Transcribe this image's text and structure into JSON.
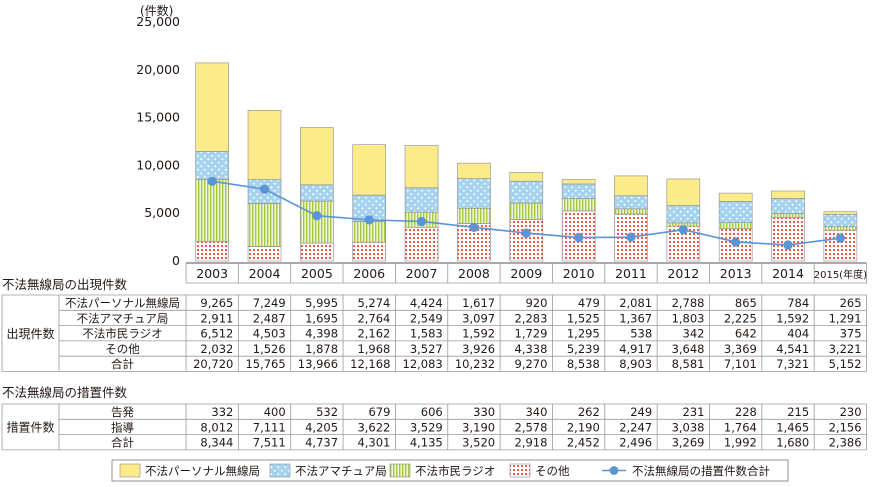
{
  "chart_data": {
    "type": "bar",
    "stacked": true,
    "y_unit_label": "(件数)",
    "ylim": [
      0,
      25000
    ],
    "y_ticks": [
      "0",
      "5,000",
      "10,000",
      "15,000",
      "20,000",
      "25,000"
    ],
    "y_tick_values": [
      0,
      5000,
      10000,
      15000,
      20000,
      25000
    ],
    "categories": [
      "2003",
      "2004",
      "2005",
      "2006",
      "2007",
      "2008",
      "2009",
      "2010",
      "2011",
      "2012",
      "2013",
      "2014",
      "2015(年度)"
    ],
    "series": [
      {
        "name": "その他",
        "color": "#e8483e",
        "values": [
          2032,
          1526,
          1878,
          1968,
          3527,
          3926,
          4338,
          5239,
          4917,
          3648,
          3369,
          4541,
          3221
        ]
      },
      {
        "name": "不法市民ラジオ",
        "color": "#a6c83c",
        "values": [
          6512,
          4503,
          4398,
          2162,
          1583,
          1592,
          1729,
          1295,
          538,
          342,
          642,
          404,
          375
        ]
      },
      {
        "name": "不法アマチュア局",
        "color": "#a5d3ef",
        "values": [
          2911,
          2487,
          1695,
          2764,
          2549,
          3097,
          2283,
          1525,
          1367,
          1803,
          2225,
          1592,
          1291
        ]
      },
      {
        "name": "不法パーソナル無線局",
        "color": "#fbeb8a",
        "values": [
          9265,
          7249,
          5995,
          5274,
          4424,
          1617,
          920,
          479,
          2081,
          2788,
          865,
          784,
          265
        ]
      }
    ],
    "line_series": {
      "name": "不法無線局の措置件数合計",
      "color": "#5b95d4",
      "values": [
        8344,
        7511,
        4737,
        4301,
        4135,
        3520,
        2918,
        2452,
        2496,
        3269,
        1992,
        1680,
        2386
      ]
    },
    "legend": {
      "position": "bottom",
      "items": [
        "不法パーソナル無線局",
        "不法アマチュア局",
        "不法市民ラジオ",
        "その他",
        "不法無線局の措置件数合計"
      ]
    },
    "tables": [
      {
        "caption": "不法無線局の出現件数",
        "group_label": "出現件数",
        "rows": [
          {
            "label": "不法パーソナル無線局",
            "values": [
              "9,265",
              "7,249",
              "5,995",
              "5,274",
              "4,424",
              "1,617",
              "920",
              "479",
              "2,081",
              "2,788",
              "865",
              "784",
              "265"
            ]
          },
          {
            "label": "不法アマチュア局",
            "values": [
              "2,911",
              "2,487",
              "1,695",
              "2,764",
              "2,549",
              "3,097",
              "2,283",
              "1,525",
              "1,367",
              "1,803",
              "2,225",
              "1,592",
              "1,291"
            ]
          },
          {
            "label": "不法市民ラジオ",
            "values": [
              "6,512",
              "4,503",
              "4,398",
              "2,162",
              "1,583",
              "1,592",
              "1,729",
              "1,295",
              "538",
              "342",
              "642",
              "404",
              "375"
            ]
          },
          {
            "label": "その他",
            "values": [
              "2,032",
              "1,526",
              "1,878",
              "1,968",
              "3,527",
              "3,926",
              "4,338",
              "5,239",
              "4,917",
              "3,648",
              "3,369",
              "4,541",
              "3,221"
            ]
          },
          {
            "label": "合計",
            "values": [
              "20,720",
              "15,765",
              "13,966",
              "12,168",
              "12,083",
              "10,232",
              "9,270",
              "8,538",
              "8,903",
              "8,581",
              "7,101",
              "7,321",
              "5,152"
            ]
          }
        ]
      },
      {
        "caption": "不法無線局の措置件数",
        "group_label": "措置件数",
        "rows": [
          {
            "label": "告発",
            "values": [
              "332",
              "400",
              "532",
              "679",
              "606",
              "330",
              "340",
              "262",
              "249",
              "231",
              "228",
              "215",
              "230"
            ]
          },
          {
            "label": "指導",
            "values": [
              "8,012",
              "7,111",
              "4,205",
              "3,622",
              "3,529",
              "3,190",
              "2,578",
              "2,190",
              "2,247",
              "3,038",
              "1,764",
              "1,465",
              "2,156"
            ]
          },
          {
            "label": "合計",
            "values": [
              "8,344",
              "7,511",
              "4,737",
              "4,301",
              "4,135",
              "3,520",
              "2,918",
              "2,452",
              "2,496",
              "3,269",
              "1,992",
              "1,680",
              "2,386"
            ]
          }
        ]
      }
    ]
  }
}
